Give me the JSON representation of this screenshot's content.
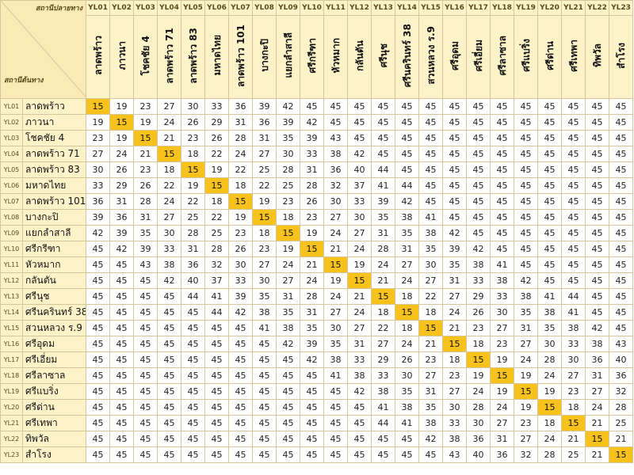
{
  "corner": {
    "dest_label": "สถานีปลายทาง",
    "origin_label": "สถานีต้นทาง"
  },
  "stations": [
    {
      "code": "YL01",
      "name": "ลาดพร้าว"
    },
    {
      "code": "YL02",
      "name": "ภาวนา"
    },
    {
      "code": "YL03",
      "name": "โชคชัย 4"
    },
    {
      "code": "YL04",
      "name": "ลาดพร้าว 71"
    },
    {
      "code": "YL05",
      "name": "ลาดพร้าว 83"
    },
    {
      "code": "YL06",
      "name": "มหาดไทย"
    },
    {
      "code": "YL07",
      "name": "ลาดพร้าว 101"
    },
    {
      "code": "YL08",
      "name": "บางกะปิ"
    },
    {
      "code": "YL09",
      "name": "แยกลำสาลี"
    },
    {
      "code": "YL10",
      "name": "ศรีกรีฑา"
    },
    {
      "code": "YL11",
      "name": "หัวหมาก"
    },
    {
      "code": "YL12",
      "name": "กลันตัน"
    },
    {
      "code": "YL13",
      "name": "ศรีนุช"
    },
    {
      "code": "YL14",
      "name": "ศรีนครินทร์ 38"
    },
    {
      "code": "YL15",
      "name": "สวนหลวง ร.9"
    },
    {
      "code": "YL16",
      "name": "ศรีอุดม"
    },
    {
      "code": "YL17",
      "name": "ศรีเอี่ยม"
    },
    {
      "code": "YL18",
      "name": "ศรีลาซาล"
    },
    {
      "code": "YL19",
      "name": "ศรีแบริ่ง"
    },
    {
      "code": "YL20",
      "name": "ศรีด่าน"
    },
    {
      "code": "YL21",
      "name": "ศรีเทพา"
    },
    {
      "code": "YL22",
      "name": "ทิพวัล"
    },
    {
      "code": "YL23",
      "name": "สำโรง"
    }
  ],
  "fares": [
    [
      15,
      19,
      23,
      27,
      30,
      33,
      36,
      39,
      42,
      45,
      45,
      45,
      45,
      45,
      45,
      45,
      45,
      45,
      45,
      45,
      45,
      45,
      45
    ],
    [
      19,
      15,
      19,
      24,
      26,
      29,
      31,
      36,
      39,
      42,
      45,
      45,
      45,
      45,
      45,
      45,
      45,
      45,
      45,
      45,
      45,
      45,
      45
    ],
    [
      23,
      19,
      15,
      21,
      23,
      26,
      28,
      31,
      35,
      39,
      43,
      45,
      45,
      45,
      45,
      45,
      45,
      45,
      45,
      45,
      45,
      45,
      45
    ],
    [
      27,
      24,
      21,
      15,
      18,
      22,
      24,
      27,
      30,
      33,
      38,
      42,
      45,
      45,
      45,
      45,
      45,
      45,
      45,
      45,
      45,
      45,
      45
    ],
    [
      30,
      26,
      23,
      18,
      15,
      19,
      22,
      25,
      28,
      31,
      36,
      40,
      44,
      45,
      45,
      45,
      45,
      45,
      45,
      45,
      45,
      45,
      45
    ],
    [
      33,
      29,
      26,
      22,
      19,
      15,
      18,
      22,
      25,
      28,
      32,
      37,
      41,
      44,
      45,
      45,
      45,
      45,
      45,
      45,
      45,
      45,
      45
    ],
    [
      36,
      31,
      28,
      24,
      22,
      18,
      15,
      19,
      23,
      26,
      30,
      33,
      39,
      42,
      45,
      45,
      45,
      45,
      45,
      45,
      45,
      45,
      45
    ],
    [
      39,
      36,
      31,
      27,
      25,
      22,
      19,
      15,
      18,
      23,
      27,
      30,
      35,
      38,
      41,
      45,
      45,
      45,
      45,
      45,
      45,
      45,
      45
    ],
    [
      42,
      39,
      35,
      30,
      28,
      25,
      23,
      18,
      15,
      19,
      24,
      27,
      31,
      35,
      38,
      42,
      45,
      45,
      45,
      45,
      45,
      45,
      45
    ],
    [
      45,
      42,
      39,
      33,
      31,
      28,
      26,
      23,
      19,
      15,
      21,
      24,
      28,
      31,
      35,
      39,
      42,
      45,
      45,
      45,
      45,
      45,
      45
    ],
    [
      45,
      45,
      43,
      38,
      36,
      32,
      30,
      27,
      24,
      21,
      15,
      19,
      24,
      27,
      30,
      35,
      38,
      41,
      45,
      45,
      45,
      45,
      45
    ],
    [
      45,
      45,
      45,
      42,
      40,
      37,
      33,
      30,
      27,
      24,
      19,
      15,
      21,
      24,
      27,
      31,
      33,
      38,
      42,
      45,
      45,
      45,
      45
    ],
    [
      45,
      45,
      45,
      45,
      44,
      41,
      39,
      35,
      31,
      28,
      24,
      21,
      15,
      18,
      22,
      27,
      29,
      33,
      38,
      41,
      44,
      45,
      45
    ],
    [
      45,
      45,
      45,
      45,
      45,
      44,
      42,
      38,
      35,
      31,
      27,
      24,
      18,
      15,
      18,
      24,
      26,
      30,
      35,
      38,
      41,
      45,
      45
    ],
    [
      45,
      45,
      45,
      45,
      45,
      45,
      45,
      41,
      38,
      35,
      30,
      27,
      22,
      18,
      15,
      21,
      23,
      27,
      31,
      35,
      38,
      42,
      45
    ],
    [
      45,
      45,
      45,
      45,
      45,
      45,
      45,
      45,
      42,
      39,
      35,
      31,
      27,
      24,
      21,
      15,
      18,
      23,
      27,
      30,
      33,
      38,
      43
    ],
    [
      45,
      45,
      45,
      45,
      45,
      45,
      45,
      45,
      45,
      42,
      38,
      33,
      29,
      26,
      23,
      18,
      15,
      19,
      24,
      28,
      30,
      36,
      40
    ],
    [
      45,
      45,
      45,
      45,
      45,
      45,
      45,
      45,
      45,
      45,
      41,
      38,
      33,
      30,
      27,
      23,
      19,
      15,
      19,
      24,
      27,
      31,
      36
    ],
    [
      45,
      45,
      45,
      45,
      45,
      45,
      45,
      45,
      45,
      45,
      45,
      42,
      38,
      35,
      31,
      27,
      24,
      19,
      15,
      19,
      23,
      27,
      32
    ],
    [
      45,
      45,
      45,
      45,
      45,
      45,
      45,
      45,
      45,
      45,
      45,
      45,
      41,
      38,
      35,
      30,
      28,
      24,
      19,
      15,
      18,
      24,
      28
    ],
    [
      45,
      45,
      45,
      45,
      45,
      45,
      45,
      45,
      45,
      45,
      45,
      45,
      44,
      41,
      38,
      33,
      30,
      27,
      23,
      18,
      15,
      21,
      25
    ],
    [
      45,
      45,
      45,
      45,
      45,
      45,
      45,
      45,
      45,
      45,
      45,
      45,
      45,
      45,
      42,
      38,
      36,
      31,
      27,
      24,
      21,
      15,
      21
    ],
    [
      45,
      45,
      45,
      45,
      45,
      45,
      45,
      45,
      45,
      45,
      45,
      45,
      45,
      45,
      45,
      43,
      40,
      36,
      32,
      28,
      25,
      21,
      15
    ]
  ],
  "colors": {
    "header_bg": "#fdf3c9",
    "diagonal_highlight": "#f6c21b",
    "grid_line": "#d8c69a"
  }
}
